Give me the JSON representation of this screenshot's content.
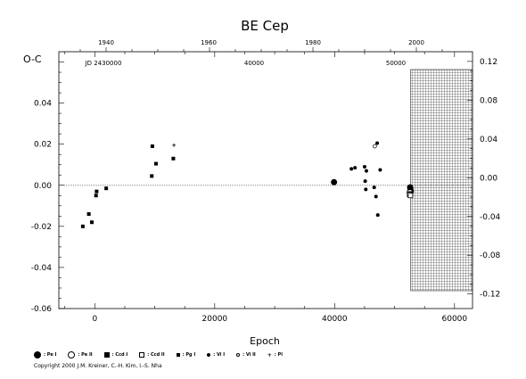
{
  "chart_data": {
    "type": "scatter",
    "title": "BE Cep",
    "ylabel": "O-C",
    "xlabel": "Epoch",
    "xlim": [
      -6000,
      63000
    ],
    "ylim": [
      -0.06,
      0.065
    ],
    "right_ylim": [
      -0.135,
      0.13
    ],
    "x_ticks": [
      0,
      20000,
      40000,
      60000
    ],
    "y_ticks": [
      -0.06,
      -0.04,
      -0.02,
      0.0,
      0.02,
      0.04
    ],
    "right_y_ticks": [
      -0.12,
      -0.08,
      -0.04,
      0.0,
      0.04,
      0.08,
      0.12
    ],
    "top_year_ticks": [
      1940,
      1960,
      1980,
      2000
    ],
    "top_jd_ticks": [
      "JD 2430000",
      "40000",
      "50000"
    ],
    "hatched_region_x": [
      52700,
      63000
    ],
    "grid": false,
    "legend_position": "bottom",
    "series": [
      {
        "name": "Pe I",
        "symbol": "circle-large-filled",
        "points": [
          [
            39900,
            0.0015
          ],
          [
            52600,
            -0.001
          ],
          [
            52650,
            -0.002
          ],
          [
            52700,
            -0.003
          ]
        ]
      },
      {
        "name": "Pe II",
        "symbol": "circle-large-open",
        "points": [
          [
            52550,
            -0.0035
          ]
        ]
      },
      {
        "name": "Ccd I",
        "symbol": "square-filled",
        "points": [
          [
            52600,
            -0.004
          ],
          [
            52700,
            -0.0045
          ]
        ]
      },
      {
        "name": "Ccd II",
        "symbol": "square-open",
        "points": [
          [
            52500,
            -0.0045
          ],
          [
            52650,
            -0.005
          ]
        ]
      },
      {
        "name": "Pg I",
        "symbol": "square-small-filled",
        "points": [
          [
            -2000,
            -0.02
          ],
          [
            -1000,
            -0.014
          ],
          [
            -500,
            -0.018
          ],
          [
            200,
            -0.005
          ],
          [
            300,
            -0.003
          ],
          [
            1900,
            -0.0015
          ],
          [
            9500,
            0.0045
          ],
          [
            9600,
            0.019
          ],
          [
            10200,
            0.0105
          ],
          [
            13100,
            0.013
          ]
        ]
      },
      {
        "name": "Vi I",
        "symbol": "circle-small-filled",
        "points": [
          [
            42800,
            0.008
          ],
          [
            43400,
            0.0085
          ],
          [
            45000,
            0.009
          ],
          [
            45100,
            0.002
          ],
          [
            45200,
            -0.002
          ],
          [
            45300,
            0.007
          ],
          [
            46600,
            -0.001
          ],
          [
            46900,
            -0.0055
          ],
          [
            47100,
            0.0205
          ],
          [
            47200,
            -0.0145
          ],
          [
            47600,
            0.0075
          ]
        ]
      },
      {
        "name": "Vi II",
        "symbol": "circle-small-open",
        "points": [
          [
            46700,
            0.019
          ]
        ]
      },
      {
        "name": "Pl",
        "symbol": "plus",
        "points": [
          [
            13200,
            0.0195
          ]
        ]
      }
    ]
  },
  "legend": [
    {
      "label": ": Pe I",
      "sym": "sym-circle-lg-f"
    },
    {
      "label": ": Pe II",
      "sym": "sym-circle-lg-o"
    },
    {
      "label": ": Ccd I",
      "sym": "sym-square-f"
    },
    {
      "label": ": Ccd II",
      "sym": "sym-square-o"
    },
    {
      "label": ": Pg I",
      "sym": "sym-square-sm-f"
    },
    {
      "label": ": Vi I",
      "sym": "sym-circle-sm-f"
    },
    {
      "label": ": Vi II",
      "sym": "sym-circle-sm-o"
    },
    {
      "label": ": Pl",
      "sym": "sym-plus"
    }
  ],
  "copyright": "Copyright 2000 J.M. Kreiner, C.-H. Kim, I.-S. Nha"
}
